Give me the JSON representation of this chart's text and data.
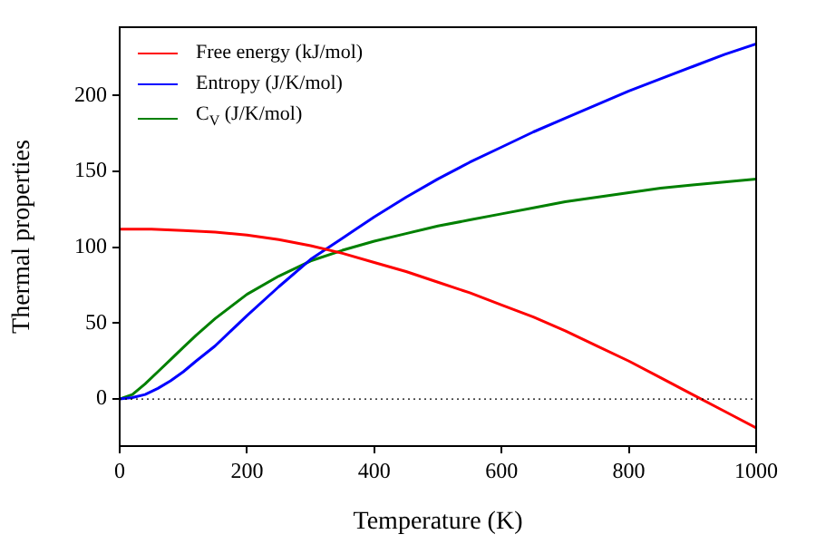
{
  "chart_data": {
    "type": "line",
    "xlabel": "Temperature (K)",
    "ylabel": "Thermal properties",
    "xlim": [
      0,
      1000
    ],
    "xticks": [
      0,
      200,
      400,
      600,
      800,
      1000
    ],
    "ylim": [
      -31,
      245
    ],
    "yticks": [
      0,
      50,
      100,
      150,
      200
    ],
    "legend": "top left",
    "grid": false,
    "marker": "none",
    "line_style": "solid",
    "ref_lines": [
      {
        "axis": "y",
        "value": 0,
        "color": "#000000",
        "line_style": "dotted"
      }
    ],
    "series": [
      {
        "name": "Free energy (kJ/mol)",
        "color": "#ff0000",
        "x": [
          0,
          50,
          100,
          150,
          200,
          250,
          300,
          350,
          400,
          450,
          500,
          550,
          600,
          650,
          700,
          750,
          800,
          850,
          900,
          950,
          1000
        ],
        "values": [
          112,
          112,
          111,
          110,
          108,
          105,
          101,
          96,
          90,
          84,
          77,
          70,
          62,
          54,
          45,
          35,
          25,
          14,
          3,
          -8,
          -19
        ]
      },
      {
        "name": "Entropy (J/K/mol)",
        "color": "#0000ff",
        "x": [
          0,
          20,
          40,
          60,
          80,
          100,
          120,
          150,
          200,
          250,
          300,
          350,
          400,
          450,
          500,
          550,
          600,
          650,
          700,
          750,
          800,
          850,
          900,
          950,
          1000
        ],
        "values": [
          0,
          1,
          3,
          7,
          12,
          18,
          25,
          35,
          55,
          74,
          92,
          106,
          120,
          133,
          145,
          156,
          166,
          176,
          185,
          194,
          203,
          211,
          219,
          227,
          234
        ]
      },
      {
        "name": "C$_{V}$ (J/K/mol)",
        "color": "#008000",
        "x": [
          0,
          20,
          40,
          60,
          80,
          100,
          120,
          150,
          200,
          250,
          300,
          350,
          400,
          450,
          500,
          550,
          600,
          650,
          700,
          750,
          800,
          850,
          900,
          950,
          1000
        ],
        "values": [
          0,
          3,
          10,
          18,
          26,
          34,
          42,
          53,
          69,
          81,
          91,
          98,
          104,
          109,
          114,
          118,
          122,
          126,
          130,
          133,
          136,
          139,
          141,
          143,
          145
        ]
      }
    ]
  }
}
